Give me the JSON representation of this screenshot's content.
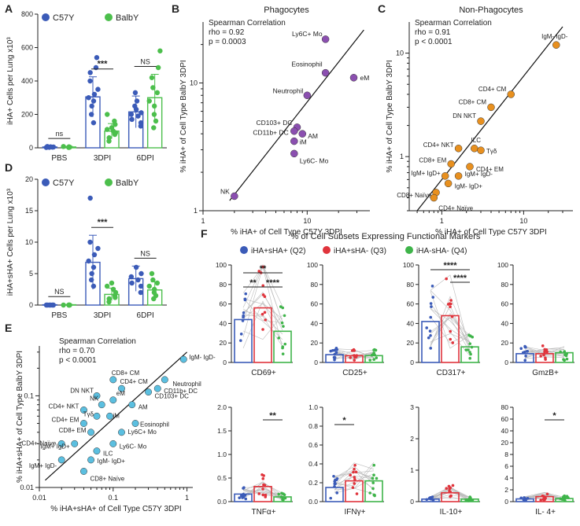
{
  "panels": {
    "A": {
      "letter": "A"
    },
    "B": {
      "letter": "B"
    },
    "C": {
      "letter": "C"
    },
    "D": {
      "letter": "D"
    },
    "E": {
      "letter": "E"
    },
    "F": {
      "letter": "F"
    }
  },
  "colors": {
    "c57": "#3b5bb8",
    "balb": "#4cbf4c",
    "q2": "#3b5bb8",
    "q3": "#e0343c",
    "q4": "#3fb44a",
    "phago": "#8b4fb0",
    "nonphago": "#e8901f",
    "e_dot": "#5bbfe0"
  },
  "chart_data": [
    {
      "id": "A",
      "type": "bar",
      "ylabel": "iHA+ Cells per Lung x10³",
      "categories": [
        "PBS",
        "3DPI",
        "6DPI"
      ],
      "ylim": [
        0,
        800
      ],
      "yticks": [
        "0",
        "200",
        "400",
        "600",
        "800"
      ],
      "legend": [
        "C57Y",
        "BalbY"
      ],
      "series": [
        {
          "name": "C57Y",
          "values": [
            5,
            305,
            215
          ],
          "errors": [
            4,
            120,
            95
          ],
          "points": [
            [
              2,
              4,
              6,
              3,
              8,
              5
            ],
            [
              150,
              200,
              250,
              280,
              300,
              320,
              350,
              400,
              450,
              480,
              540
            ],
            [
              130,
              150,
              170,
              190,
              200,
              210,
              230,
              250,
              280,
              330
            ]
          ]
        },
        {
          "name": "BalbY",
          "values": [
            5,
            100,
            300
          ],
          "errors": [
            4,
            45,
            140
          ],
          "points": [
            [
              2,
              3,
              6,
              8,
              4
            ],
            [
              40,
              60,
              80,
              90,
              100,
              110,
              120,
              140,
              160,
              200
            ],
            [
              120,
              160,
              200,
              250,
              280,
              330,
              360,
              420,
              480,
              580
            ]
          ]
        }
      ],
      "significance": [
        "ns",
        "***",
        "NS"
      ]
    },
    {
      "id": "B",
      "type": "scatter",
      "title": "Phagocytes",
      "xlabel": "% iHA+ of Cell Type C57Y 3DPI",
      "ylabel": "% iHA+ of Cell Type BalbY 3DPI",
      "xscale": "log",
      "yscale": "log",
      "xlim": [
        1,
        40
      ],
      "ylim": [
        1,
        30
      ],
      "xticks": [
        "1",
        "10"
      ],
      "yticks": [
        "1",
        "10"
      ],
      "stats": [
        "Spearman Correlation",
        "rho = 0.92",
        "p = 0.0003"
      ],
      "points": [
        {
          "label": "Ly6C+ Mo",
          "x": 15,
          "y": 22
        },
        {
          "label": "Eosinophil",
          "x": 15,
          "y": 12
        },
        {
          "label": "eM",
          "x": 28,
          "y": 11
        },
        {
          "label": "Neutrophil",
          "x": 10,
          "y": 8
        },
        {
          "label": "CD103+ DC",
          "x": 8,
          "y": 4.5
        },
        {
          "label": "CD11b+ DC",
          "x": 7.5,
          "y": 4.2
        },
        {
          "label": "AM",
          "x": 9,
          "y": 4
        },
        {
          "label": "iM",
          "x": 7.5,
          "y": 3.5
        },
        {
          "label": "Ly6C- Mo",
          "x": 7.5,
          "y": 2.8
        },
        {
          "label": "NK",
          "x": 2,
          "y": 1.3
        }
      ]
    },
    {
      "id": "C",
      "type": "scatter",
      "title": "Non-Phagocytes",
      "xlabel": "% iHA+ of Cell Type C57Y 3DPI",
      "ylabel": "% iHA+ of Cell Type BalbY 3DPI",
      "xscale": "log",
      "yscale": "log",
      "xlim": [
        0.4,
        40
      ],
      "ylim": [
        0.3,
        20
      ],
      "xticks": [
        "1",
        "10"
      ],
      "yticks": [
        "1",
        "10"
      ],
      "stats": [
        "Spearman Correlation",
        "rho = 0.91",
        "p < 0.0001"
      ],
      "points": [
        {
          "label": "IgM- IgD-",
          "x": 25,
          "y": 12
        },
        {
          "label": "CD4+ CM",
          "x": 7,
          "y": 4
        },
        {
          "label": "CD8+ CM",
          "x": 4,
          "y": 3
        },
        {
          "label": "DN NKT",
          "x": 3,
          "y": 2.2
        },
        {
          "label": "ILC",
          "x": 2.5,
          "y": 1.2
        },
        {
          "label": "CD4+ NKT",
          "x": 1.6,
          "y": 1.2
        },
        {
          "label": "Tγδ",
          "x": 3,
          "y": 1.15
        },
        {
          "label": "CD8+ EM",
          "x": 1.3,
          "y": 0.85
        },
        {
          "label": "CD4+ EM",
          "x": 2.2,
          "y": 0.8
        },
        {
          "label": "IgM+ IgD+",
          "x": 1.1,
          "y": 0.65
        },
        {
          "label": "IgM+ IgD-",
          "x": 1.6,
          "y": 0.65
        },
        {
          "label": "IgM- IgD+",
          "x": 1.2,
          "y": 0.55
        },
        {
          "label": "CD8+ Naïve",
          "x": 0.85,
          "y": 0.45
        },
        {
          "label": "CD4+ Naïve",
          "x": 0.8,
          "y": 0.4
        }
      ]
    },
    {
      "id": "D",
      "type": "bar",
      "ylabel": "iHA+sHA+ Cells per Lung x10³",
      "categories": [
        "PBS",
        "3DPI",
        "6DPI"
      ],
      "ylim": [
        0,
        20
      ],
      "yticks": [
        "0",
        "5",
        "10",
        "15",
        "20"
      ],
      "legend": [
        "C57Y",
        "BalbY"
      ],
      "series": [
        {
          "name": "C57Y",
          "values": [
            0.05,
            6.8,
            4.2
          ],
          "errors": [
            0.05,
            4.3,
            2.0
          ],
          "points": [
            [
              0,
              0,
              0,
              0,
              0,
              0
            ],
            [
              3,
              4,
              5,
              6,
              7,
              8,
              9,
              10,
              17
            ],
            [
              2,
              3,
              3.5,
              4,
              4.5,
              5,
              6
            ]
          ]
        },
        {
          "name": "BalbY",
          "values": [
            0.05,
            1.7,
            2.4
          ],
          "errors": [
            0.05,
            1.0,
            1.3
          ],
          "points": [
            [
              0,
              0,
              0,
              0,
              0
            ],
            [
              0.5,
              1,
              1.5,
              2,
              2.5,
              3,
              3.5,
              1.2
            ],
            [
              1,
              1.5,
              2,
              2.5,
              3,
              3.5,
              4,
              5
            ]
          ]
        }
      ],
      "significance": [
        "NS",
        "***",
        "NS"
      ]
    },
    {
      "id": "E",
      "type": "scatter",
      "xlabel": "% iHA+sHA+ of Cell Type C57Y 3DPI",
      "ylabel": "% iHA+sHA+ of Cell Type BalbY 3DPI",
      "xscale": "log",
      "yscale": "log",
      "xlim": [
        0.01,
        1.2
      ],
      "ylim": [
        0.01,
        0.35
      ],
      "xticks": [
        "0.01",
        "0.1",
        "1"
      ],
      "yticks": [
        "0.01",
        "0.1"
      ],
      "stats": [
        "Spearman Correlation",
        "rho = 0.70",
        "p < 0.0001"
      ],
      "points": [
        {
          "label": "IgM- IgD-",
          "x": 0.9,
          "y": 0.25
        },
        {
          "label": "Neutrophil",
          "x": 0.5,
          "y": 0.15
        },
        {
          "label": "CD11b+ DC",
          "x": 0.4,
          "y": 0.12
        },
        {
          "label": "CD103+ DC",
          "x": 0.3,
          "y": 0.11
        },
        {
          "label": "CD8+ CM",
          "x": 0.1,
          "y": 0.15
        },
        {
          "label": "CD4+ CM",
          "x": 0.13,
          "y": 0.12
        },
        {
          "label": "DN NKT",
          "x": 0.06,
          "y": 0.1
        },
        {
          "label": "eM",
          "x": 0.1,
          "y": 0.09
        },
        {
          "label": "NK",
          "x": 0.07,
          "y": 0.08
        },
        {
          "label": "CD4+ NKT",
          "x": 0.04,
          "y": 0.07
        },
        {
          "label": "Tγδ",
          "x": 0.06,
          "y": 0.06
        },
        {
          "label": "iM",
          "x": 0.09,
          "y": 0.06
        },
        {
          "label": "AM",
          "x": 0.18,
          "y": 0.08
        },
        {
          "label": "Eosinophil",
          "x": 0.2,
          "y": 0.05
        },
        {
          "label": "CD4+ EM",
          "x": 0.04,
          "y": 0.05
        },
        {
          "label": "CD8+ EM",
          "x": 0.05,
          "y": 0.04
        },
        {
          "label": "Ly6C+ Mo",
          "x": 0.13,
          "y": 0.04
        },
        {
          "label": "CD4+ Naïve",
          "x": 0.02,
          "y": 0.03
        },
        {
          "label": "Ly6C- Mo",
          "x": 0.1,
          "y": 0.03
        },
        {
          "label": "IgM+ IgD+",
          "x": 0.03,
          "y": 0.03
        },
        {
          "label": "ILC",
          "x": 0.06,
          "y": 0.025
        },
        {
          "label": "IgM- IgD+",
          "x": 0.05,
          "y": 0.02
        },
        {
          "label": "IgM+ IgD-",
          "x": 0.02,
          "y": 0.02
        },
        {
          "label": "CD8+ Naïve",
          "x": 0.04,
          "y": 0.015
        }
      ]
    },
    {
      "id": "F",
      "type": "bar",
      "title": "% of Cell Subsets Expressing Functional Markers",
      "legend": [
        "iHA+sHA+ (Q2)",
        "iHA+sHA- (Q3)",
        "iHA-sHA- (Q4)"
      ],
      "subplots": [
        {
          "marker": "CD69+",
          "ylim": [
            0,
            100
          ],
          "yticks": [
            "0",
            "20",
            "40",
            "60",
            "80",
            "100"
          ],
          "values": [
            44,
            56,
            32
          ],
          "significance": [
            "**",
            "**",
            "****"
          ]
        },
        {
          "marker": "CD25+",
          "ylim": [
            0,
            100
          ],
          "yticks": [
            "0",
            "20",
            "40",
            "60",
            "80",
            "100"
          ],
          "values": [
            8,
            7,
            7
          ],
          "significance": []
        },
        {
          "marker": "CD317+",
          "ylim": [
            0,
            100
          ],
          "yticks": [
            "0",
            "20",
            "40",
            "60",
            "80",
            "100"
          ],
          "values": [
            42,
            48,
            16
          ],
          "significance": [
            "****",
            "****"
          ]
        },
        {
          "marker": "GmzB+",
          "ylim": [
            0,
            100
          ],
          "yticks": [
            "0",
            "20",
            "40",
            "60",
            "80",
            "100"
          ],
          "values": [
            9,
            9,
            10
          ],
          "significance": []
        },
        {
          "marker": "TNFα+",
          "ylim": [
            0,
            2
          ],
          "yticks": [
            "0.0",
            "0.5",
            "1.0",
            "1.5",
            "2.0"
          ],
          "values": [
            0.16,
            0.32,
            0.1
          ],
          "significance": [
            "**"
          ]
        },
        {
          "marker": "IFNγ+",
          "ylim": [
            0,
            1.0
          ],
          "yticks": [
            "0.0",
            "0.2",
            "0.4",
            "0.6",
            "0.8",
            "1.0"
          ],
          "values": [
            0.15,
            0.22,
            0.22
          ],
          "significance": [
            "*"
          ]
        },
        {
          "marker": "IL-10+",
          "ylim": [
            0,
            3
          ],
          "yticks": [
            "0",
            "1",
            "2",
            "3"
          ],
          "values": [
            0.08,
            0.28,
            0.08
          ],
          "significance": []
        },
        {
          "marker": "IL- 4+",
          "ylim": [
            0,
            80
          ],
          "yticks": [
            "0",
            "2",
            "4",
            "6",
            "8",
            "20",
            "40",
            "60",
            "80"
          ],
          "values": [
            2.3,
            4.2,
            2.6
          ],
          "significance": [
            "*"
          ]
        }
      ]
    }
  ]
}
